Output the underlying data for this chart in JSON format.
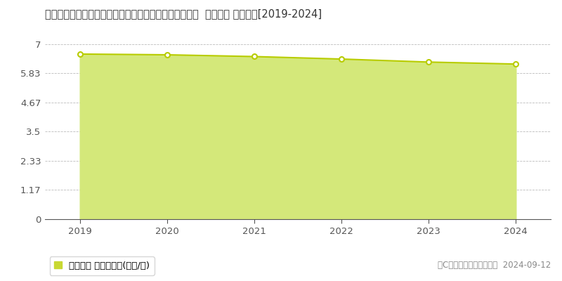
{
  "title": "山口県熊毛郡平生町大字宇佐木字下猿田１０３１０番６  地価公示 地価推移[2019-2024]",
  "years": [
    2019,
    2020,
    2021,
    2022,
    2023,
    2024
  ],
  "values": [
    6.6,
    6.57,
    6.5,
    6.4,
    6.28,
    6.2
  ],
  "yticks": [
    0,
    1.17,
    2.33,
    3.5,
    4.67,
    5.83,
    7
  ],
  "ylim": [
    0,
    7.3
  ],
  "xlim": [
    2018.6,
    2024.4
  ],
  "line_color": "#b8cc00",
  "fill_color": "#d4e87a",
  "fill_alpha": 1.0,
  "marker_facecolor": "#ffffff",
  "marker_edgecolor": "#b8cc00",
  "grid_color": "#aaaaaa",
  "bg_color": "#ffffff",
  "plot_bg_color": "#ffffff",
  "legend_label": "地価公示 平均坪単価(万円/坪)",
  "legend_square_color": "#c8d832",
  "copyright_text": "（C）土地価格ドットコム  2024-09-12",
  "title_fontsize": 10.5,
  "axis_fontsize": 9.5,
  "legend_fontsize": 9.5,
  "copyright_fontsize": 8.5
}
